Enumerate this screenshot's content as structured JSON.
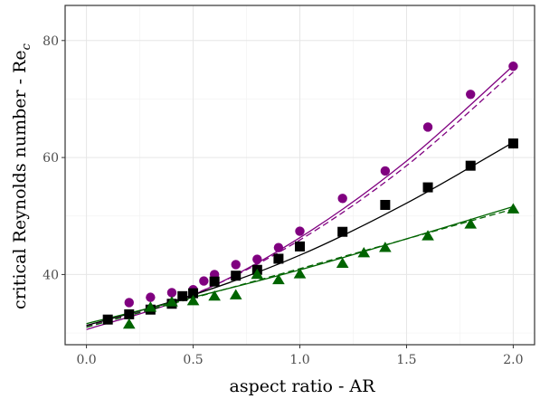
{
  "chart_data": {
    "type": "scatter",
    "xlabel": "aspect ratio - AR",
    "ylabel_main": "critical Reynolds number - Re",
    "ylabel_sub": "c",
    "xlim": [
      -0.1,
      2.1
    ],
    "ylim": [
      28,
      86
    ],
    "x_ticks": [
      0.0,
      0.5,
      1.0,
      1.5,
      2.0
    ],
    "x_tick_labels": [
      "0.0",
      "0.5",
      "1.0",
      "1.5",
      "2.0"
    ],
    "y_ticks": [
      40,
      60,
      80
    ],
    "y_tick_labels": [
      "40",
      "60",
      "80"
    ],
    "grid": true,
    "legend": "none",
    "series": [
      {
        "marker": "circle",
        "color": "#800080",
        "points": [
          [
            0.2,
            35.2
          ],
          [
            0.3,
            36.1
          ],
          [
            0.4,
            36.9
          ],
          [
            0.5,
            37.4
          ],
          [
            0.55,
            38.9
          ],
          [
            0.6,
            40.0
          ],
          [
            0.7,
            41.7
          ],
          [
            0.8,
            42.6
          ],
          [
            0.9,
            44.6
          ],
          [
            1.0,
            47.4
          ],
          [
            1.2,
            53.0
          ],
          [
            1.4,
            57.7
          ],
          [
            1.6,
            65.2
          ],
          [
            1.8,
            70.8
          ],
          [
            2.0,
            75.6
          ]
        ],
        "fit_solid": [
          [
            0.0,
            30.6
          ],
          [
            0.5,
            36.5
          ],
          [
            1.0,
            46.3
          ],
          [
            1.5,
            59.4
          ],
          [
            2.0,
            75.7
          ]
        ],
        "fit_dashed": [
          [
            0.0,
            31.1
          ],
          [
            0.5,
            36.6
          ],
          [
            1.0,
            45.9
          ],
          [
            1.5,
            58.6
          ],
          [
            2.0,
            74.6
          ]
        ]
      },
      {
        "marker": "square",
        "color": "#000000",
        "points": [
          [
            0.1,
            32.3
          ],
          [
            0.2,
            33.2
          ],
          [
            0.3,
            34.0
          ],
          [
            0.4,
            35.0
          ],
          [
            0.45,
            36.3
          ],
          [
            0.5,
            36.8
          ],
          [
            0.6,
            38.8
          ],
          [
            0.7,
            39.8
          ],
          [
            0.8,
            40.8
          ],
          [
            0.9,
            42.7
          ],
          [
            1.0,
            44.8
          ],
          [
            1.2,
            47.3
          ],
          [
            1.4,
            51.9
          ],
          [
            1.6,
            54.9
          ],
          [
            1.8,
            58.6
          ],
          [
            2.0,
            62.4
          ]
        ],
        "fit_solid": [
          [
            0.0,
            31.3
          ],
          [
            0.5,
            36.5
          ],
          [
            1.0,
            43.3
          ],
          [
            1.5,
            52.2
          ],
          [
            2.0,
            62.6
          ]
        ],
        "fit_dashed": null
      },
      {
        "marker": "triangle",
        "color": "#006400",
        "points": [
          [
            0.2,
            31.5
          ],
          [
            0.3,
            34.4
          ],
          [
            0.4,
            35.3
          ],
          [
            0.5,
            35.5
          ],
          [
            0.6,
            36.3
          ],
          [
            0.7,
            36.5
          ],
          [
            0.8,
            40.0
          ],
          [
            0.9,
            39.1
          ],
          [
            1.0,
            40.1
          ],
          [
            1.2,
            41.9
          ],
          [
            1.3,
            43.7
          ],
          [
            1.4,
            44.6
          ],
          [
            1.6,
            46.6
          ],
          [
            1.8,
            48.6
          ],
          [
            2.0,
            51.2
          ]
        ],
        "fit_solid": [
          [
            0.0,
            31.6
          ],
          [
            1.0,
            40.8
          ],
          [
            2.0,
            51.6
          ]
        ],
        "fit_dashed": [
          [
            0.0,
            31.0
          ],
          [
            1.0,
            41.0
          ],
          [
            2.0,
            51.2
          ]
        ]
      }
    ]
  }
}
